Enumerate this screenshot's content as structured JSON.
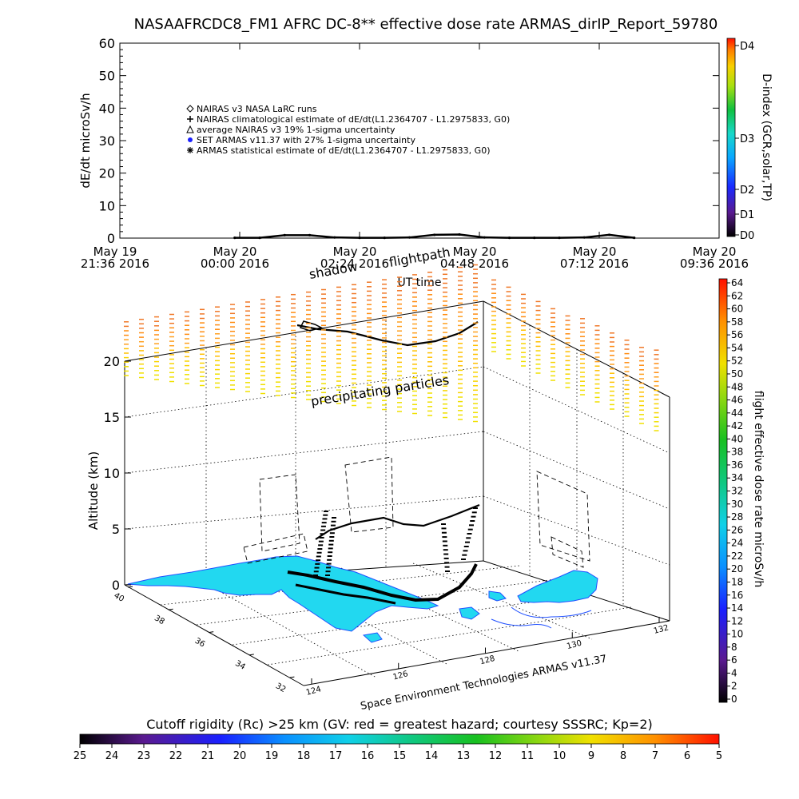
{
  "title": "NASAAFRCDC8_FM1 AFRC DC-8** effective dose rate ARMAS_dirIP_Report_59780",
  "chart_data": [
    {
      "type": "line",
      "ylabel": "dE/dt microSv/h",
      "xlabel": "UT time",
      "ylim": [
        0,
        60
      ],
      "yticks": [
        "0",
        "10",
        "20",
        "30",
        "40",
        "50",
        "60"
      ],
      "xticks": [
        {
          "d": "May 19",
          "t": "21:36 2016"
        },
        {
          "d": "May 20",
          "t": "00:00 2016"
        },
        {
          "d": "May 20",
          "t": "02:24 2016"
        },
        {
          "d": "May 20",
          "t": "04:48 2016"
        },
        {
          "d": "May 20",
          "t": "07:12 2016"
        },
        {
          "d": "May 20",
          "t": "09:36 2016"
        }
      ],
      "legend": [
        {
          "symbol": "diamond",
          "label": "NAIRAS v3 NASA LaRC runs"
        },
        {
          "symbol": "plus",
          "label": "NAIRAS climatological estimate of dE/dt(L1.2364707 - L1.2975833, G0)"
        },
        {
          "symbol": "triangle",
          "label": "average NAIRAS v3 19% 1-sigma uncertainty"
        },
        {
          "symbol": "dot",
          "label": "SET ARMAS v11.37 with 27% 1-sigma uncertainty"
        },
        {
          "symbol": "asterisk",
          "label": "ARMAS statistical estimate of dE/dt(L1.2364707 - L1.2975833, G0)"
        }
      ],
      "series": [
        {
          "name": "ARMAS statistical estimate of dE/dt(L1.2364707 - L1.2975833, G0)",
          "x_hours": [
            0.0,
            0.5,
            1.0,
            1.5,
            2.0,
            2.5,
            3.0,
            3.5,
            4.0,
            4.5,
            5.0,
            5.5,
            6.0,
            6.5,
            7.0,
            7.5,
            8.0
          ],
          "y": [
            0.1,
            0.1,
            0.9,
            0.9,
            0.2,
            0.1,
            0.1,
            0.2,
            1.0,
            1.1,
            0.2,
            0.1,
            0.1,
            0.1,
            0.2,
            1.0,
            0.1
          ]
        }
      ],
      "right_axis": {
        "label": "D-index (GCR,solar,TP)",
        "ticks": [
          "D0",
          "D1",
          "D2",
          "D3",
          "D4"
        ]
      }
    },
    {
      "type": "scatter",
      "ylabel": "Altitude (km)",
      "zticks": [
        "0",
        "5",
        "10",
        "15",
        "20"
      ],
      "lat_ticks": [
        "40",
        "38",
        "36",
        "34",
        "32"
      ],
      "lon_ticks": [
        "124",
        "126",
        "128",
        "130",
        "132"
      ],
      "annotations": [
        "shadow",
        "flightpath",
        "precipitating particles"
      ],
      "footer": "Space Environment Technologies ARMAS v11.37",
      "colorbar": {
        "label": "flight effective dose rate microSv/h",
        "ticks": [
          "0",
          "2",
          "4",
          "6",
          "8",
          "10",
          "12",
          "14",
          "16",
          "18",
          "20",
          "22",
          "24",
          "26",
          "28",
          "30",
          "32",
          "34",
          "36",
          "38",
          "40",
          "42",
          "44",
          "46",
          "48",
          "50",
          "52",
          "54",
          "56",
          "58",
          "60",
          "62",
          "64"
        ]
      }
    }
  ],
  "bottom_colorbar": {
    "title": "Cutoff rigidity (Rc) >25 km (GV: red = greatest hazard; courtesy SSSRC; Kp=2)",
    "ticks": [
      "25",
      "24",
      "23",
      "22",
      "21",
      "20",
      "19",
      "18",
      "17",
      "16",
      "15",
      "14",
      "13",
      "12",
      "11",
      "10",
      "9",
      "8",
      "7",
      "6",
      "5"
    ]
  },
  "colors": {
    "land": "#22d8f0",
    "coast": "#2050ff",
    "track": "#000000"
  }
}
